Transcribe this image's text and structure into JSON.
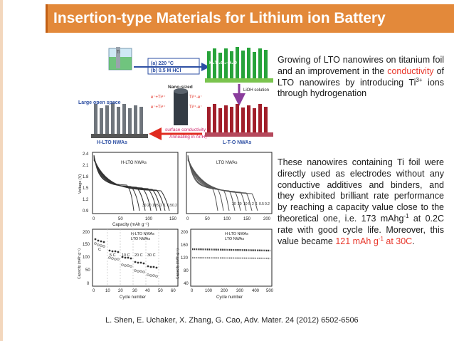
{
  "slide": {
    "title": "Insertion-type Materials for Lithium ion Battery",
    "paragraph1": {
      "part1": "Growing of LTO nanowires on titanium foil and an improvement in the ",
      "highlight": "conductivity",
      "part2": " of LTO nanowires by introducing Ti",
      "sup": "3+",
      "part3": " ions through hydrogenation"
    },
    "paragraph2": {
      "part1": "These nanowires containing Ti foil were directly used as electrodes without any conductive additives and binders, and they exhibited brilliant rate performance by reaching a capacity value close to the theoretical one, i.e. 173 mAhg",
      "sup1": "-1",
      "part2": " at 0.2C rate with good cycle life. Moreover, this value became ",
      "highlight_a": "121 mAh g",
      "highlight_sup": "-1",
      "highlight_b": " at 30C",
      "part3": "."
    },
    "citation": "L. Shen, E. Uchaker, X. Zhang, G. Cao, Adv. Mater. 24 (2012) 6502-6506"
  },
  "figure": {
    "schematic": {
      "step_a": "(a) 220 °C",
      "step_b": "(b) 0.5 M HCl",
      "h2ti2o5": "H₂Ti₂O₅·H₂O",
      "lioh": "LiOH solution",
      "nano_sized": "Nano-sized",
      "large_open_space": "Large open space",
      "surface_conduct": "surface conductivity",
      "annealing": "Annealing in Ar/H₂",
      "electrons_left": "e⁻+Ti⁴⁺",
      "electrons_right": "Ti³⁺-e⁻",
      "label_hlto": "H-LTO NWAs",
      "label_lto": "L-T-O NWAs",
      "ti_label": "Ti"
    },
    "top_left_plot": {
      "legend": "H-LTO NWAs",
      "ylabel": "Voltage (V)",
      "xlabel": "Capacity (mAh g⁻¹)",
      "yticks": [
        "2.4",
        "2.1",
        "1.8",
        "1.5",
        "1.2",
        "0.9"
      ],
      "xticks": [
        "0",
        "50",
        "100",
        "150"
      ],
      "rates": [
        "30",
        "20",
        "10",
        "5",
        "2",
        "1",
        "0.5",
        "0.2"
      ]
    },
    "top_right_plot": {
      "legend": "LTO NWAs",
      "xticks": [
        "0",
        "50",
        "100",
        "150",
        "200"
      ],
      "rates": [
        "30",
        "20",
        "10",
        "5",
        "2",
        "1",
        "0.5",
        "0.2"
      ]
    },
    "bottom_left_plot": {
      "legend_1": "H-LTO NWAs",
      "legend_2": "LTO NWAs",
      "ylabel": "Capacity (mAh g⁻¹)",
      "xlabel": "Cycle number",
      "yticks": [
        "200",
        "150",
        "100",
        "50",
        "0"
      ],
      "xticks": [
        "0",
        "10",
        "20",
        "30",
        "40",
        "50",
        "60"
      ],
      "rate_labels": [
        "C",
        "5 C",
        "10 C",
        "20 C",
        "30 C"
      ]
    },
    "bottom_right_plot": {
      "legend_1": "H-LTO NWAs",
      "legend_2": "LTO NWAs",
      "ylabel": "Capacity (mAh g⁻¹)",
      "xlabel": "Cycle number",
      "yticks": [
        "200",
        "160",
        "120",
        "80",
        "40"
      ],
      "xticks": [
        "0",
        "100",
        "200",
        "300",
        "400",
        "500"
      ]
    },
    "colors": {
      "grey_nanowire": "#6f757c",
      "green_nanowire": "#27a33a",
      "red_nanowire": "#a11e2a",
      "blue_box": "#2d4fa3",
      "arrow_red": "#e02b20",
      "arrow_purple": "#8a3d9c"
    }
  }
}
